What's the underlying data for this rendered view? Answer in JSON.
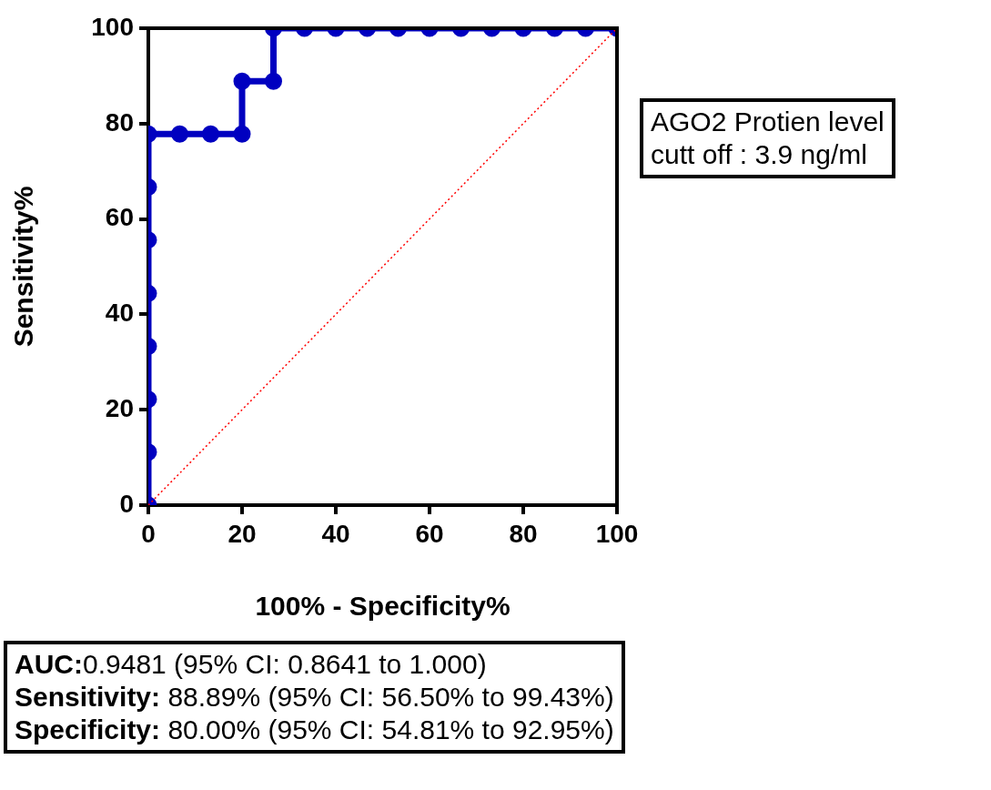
{
  "chart_data": {
    "type": "line",
    "xlabel": "100% - Specificity%",
    "ylabel": "Sensitivity%",
    "series": [
      {
        "type": "line",
        "color": "#0000c0",
        "marker": "circle",
        "line_style": "solid",
        "x": [
          0,
          0,
          0,
          0,
          0,
          0,
          0,
          0,
          6.7,
          13.3,
          20,
          20,
          26.7,
          26.7,
          33.3,
          40,
          46.7,
          53.3,
          60,
          66.7,
          73.3,
          80,
          86.7,
          93.3,
          100
        ],
        "values": [
          0,
          11.1,
          22.2,
          33.3,
          44.4,
          55.6,
          66.7,
          77.8,
          77.8,
          77.8,
          77.8,
          88.9,
          88.9,
          100,
          100,
          100,
          100,
          100,
          100,
          100,
          100,
          100,
          100,
          100,
          100
        ]
      },
      {
        "type": "line",
        "color": "#ff0000",
        "marker": "none",
        "line_style": "dotted",
        "x": [
          0,
          100
        ],
        "values": [
          0,
          100
        ]
      }
    ],
    "xlim": [
      0,
      100
    ],
    "ylim": [
      0,
      100
    ],
    "xticks": [
      0,
      20,
      40,
      60,
      80,
      100
    ],
    "yticks": [
      0,
      20,
      40,
      60,
      80,
      100
    ],
    "grid": false,
    "legend": false,
    "annotations": [
      "AGO2 Protien level\ncutt off : 3.9 ng/ml",
      "AUC:0.9481 (95% CI: 0.8641 to 1.000)",
      "Sensitivity: 88.89% (95% CI: 56.50% to 99.43%)",
      "Specificity: 80.00% (95% CI: 54.81% to 92.95%)"
    ]
  }
}
